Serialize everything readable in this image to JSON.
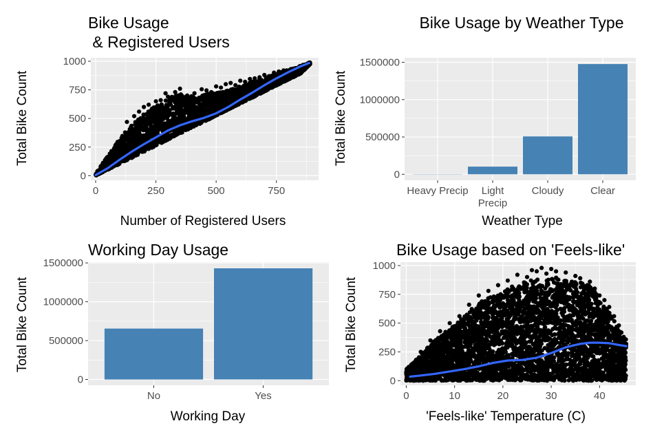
{
  "chart_data": [
    {
      "type": "scatter",
      "title_lines": [
        "Bike Usage",
        "  & Registered Users"
      ],
      "xlabel": "Number of Registered Users",
      "ylabel": "Total Bike Count",
      "xlim": [
        -20,
        925
      ],
      "ylim": [
        -40,
        1030
      ],
      "x_ticks": [
        0,
        250,
        500,
        750
      ],
      "y_ticks": [
        0,
        250,
        500,
        750,
        1000
      ],
      "grid": true,
      "smooth_color": "#3366ff",
      "point_color": "#000000",
      "trend": [
        [
          0,
          5
        ],
        [
          50,
          65
        ],
        [
          100,
          140
        ],
        [
          150,
          210
        ],
        [
          200,
          275
        ],
        [
          250,
          335
        ],
        [
          300,
          395
        ],
        [
          350,
          440
        ],
        [
          400,
          475
        ],
        [
          450,
          505
        ],
        [
          500,
          545
        ],
        [
          550,
          600
        ],
        [
          600,
          665
        ],
        [
          650,
          725
        ],
        [
          700,
          790
        ],
        [
          750,
          850
        ],
        [
          800,
          905
        ],
        [
          850,
          955
        ],
        [
          886,
          985
        ]
      ],
      "band_upper": [
        [
          0,
          20
        ],
        [
          30,
          110
        ],
        [
          60,
          200
        ],
        [
          100,
          330
        ],
        [
          150,
          440
        ],
        [
          200,
          540
        ],
        [
          250,
          610
        ],
        [
          300,
          680
        ],
        [
          340,
          720
        ],
        [
          370,
          700
        ],
        [
          420,
          690
        ],
        [
          480,
          720
        ],
        [
          550,
          745
        ],
        [
          600,
          780
        ],
        [
          650,
          820
        ],
        [
          700,
          850
        ],
        [
          750,
          890
        ],
        [
          800,
          925
        ],
        [
          850,
          960
        ],
        [
          890,
          990
        ]
      ],
      "band_lower": [
        [
          0,
          0
        ],
        [
          50,
          52
        ],
        [
          100,
          104
        ],
        [
          150,
          156
        ],
        [
          200,
          210
        ],
        [
          250,
          262
        ],
        [
          300,
          315
        ],
        [
          350,
          368
        ],
        [
          400,
          420
        ],
        [
          450,
          472
        ],
        [
          500,
          525
        ],
        [
          550,
          578
        ],
        [
          600,
          630
        ],
        [
          650,
          682
        ],
        [
          700,
          735
        ],
        [
          750,
          788
        ],
        [
          800,
          840
        ],
        [
          850,
          892
        ],
        [
          890,
          975
        ]
      ],
      "outliers": [
        [
          300,
          690
        ],
        [
          330,
          730
        ],
        [
          350,
          760
        ],
        [
          290,
          720
        ],
        [
          380,
          700
        ],
        [
          410,
          720
        ],
        [
          440,
          755
        ],
        [
          460,
          745
        ],
        [
          480,
          730
        ],
        [
          500,
          780
        ],
        [
          520,
          770
        ],
        [
          540,
          800
        ],
        [
          560,
          810
        ],
        [
          580,
          790
        ],
        [
          600,
          830
        ],
        [
          620,
          820
        ],
        [
          640,
          845
        ],
        [
          660,
          850
        ],
        [
          680,
          860
        ],
        [
          700,
          880
        ],
        [
          720,
          870
        ],
        [
          740,
          900
        ],
        [
          760,
          910
        ],
        [
          780,
          920
        ],
        [
          820,
          935
        ],
        [
          860,
          965
        ],
        [
          880,
          980
        ],
        [
          886,
          988
        ],
        [
          200,
          600
        ],
        [
          220,
          620
        ],
        [
          180,
          560
        ],
        [
          160,
          520
        ],
        [
          130,
          470
        ],
        [
          250,
          650
        ],
        [
          270,
          660
        ]
      ]
    },
    {
      "type": "bar",
      "title": "Bike Usage by Weather Type",
      "xlabel": "Weather Type",
      "ylabel": "Total Bike Count",
      "categories": [
        [
          "Heavy Precip"
        ],
        [
          "Light",
          "Precip"
        ],
        [
          "Cloudy"
        ],
        [
          "Clear"
        ]
      ],
      "values": [
        223,
        102000,
        507000,
        1476000
      ],
      "ylim": [
        -80000,
        1560000
      ],
      "y_ticks": [
        0,
        500000,
        1000000,
        1500000
      ],
      "bar_color": "#4682b4",
      "grid": true
    },
    {
      "type": "bar",
      "title": "Working Day Usage",
      "xlabel": "Working Day",
      "ylabel": "Total Bike Count",
      "categories": [
        [
          "No"
        ],
        [
          "Yes"
        ]
      ],
      "values": [
        655000,
        1430000
      ],
      "ylim": [
        -75000,
        1510000
      ],
      "y_ticks": [
        0,
        500000,
        1000000,
        1500000
      ],
      "bar_color": "#4682b4",
      "grid": true
    },
    {
      "type": "scatter",
      "title": "Bike Usage based on 'Feels-like'",
      "xlabel": "'Feels-like' Temperature (C)",
      "ylabel": "Total Bike Count",
      "xlim": [
        -1.2,
        47.5
      ],
      "ylim": [
        -40,
        1030
      ],
      "x_ticks": [
        0,
        10,
        20,
        30,
        40
      ],
      "y_ticks": [
        0,
        250,
        500,
        750,
        1000
      ],
      "grid": true,
      "smooth_color": "#3366ff",
      "point_color": "#000000",
      "trend": [
        [
          0.8,
          35
        ],
        [
          3,
          45
        ],
        [
          6,
          60
        ],
        [
          9,
          80
        ],
        [
          12,
          100
        ],
        [
          15,
          125
        ],
        [
          18,
          155
        ],
        [
          21,
          175
        ],
        [
          24,
          180
        ],
        [
          27,
          200
        ],
        [
          30,
          240
        ],
        [
          33,
          290
        ],
        [
          36,
          320
        ],
        [
          38,
          330
        ],
        [
          40,
          330
        ],
        [
          42,
          325
        ],
        [
          44,
          310
        ],
        [
          45.5,
          300
        ]
      ],
      "band_upper": [
        [
          0,
          100
        ],
        [
          3,
          220
        ],
        [
          5,
          320
        ],
        [
          8,
          420
        ],
        [
          10,
          480
        ],
        [
          12,
          560
        ],
        [
          14,
          640
        ],
        [
          16,
          700
        ],
        [
          18,
          740
        ],
        [
          20,
          780
        ],
        [
          22,
          820
        ],
        [
          24,
          850
        ],
        [
          26,
          880
        ],
        [
          28,
          880
        ],
        [
          30,
          900
        ],
        [
          32,
          890
        ],
        [
          34,
          870
        ],
        [
          36,
          860
        ],
        [
          38,
          830
        ],
        [
          40,
          720
        ],
        [
          42,
          600
        ],
        [
          44,
          450
        ],
        [
          45.5,
          360
        ]
      ],
      "band_lower": [
        [
          0,
          0
        ],
        [
          45.5,
          0
        ]
      ],
      "outliers": [
        [
          21,
          870
        ],
        [
          23,
          920
        ],
        [
          25,
          900
        ],
        [
          27,
          950
        ],
        [
          29,
          930
        ],
        [
          30,
          970
        ],
        [
          31,
          950
        ],
        [
          33,
          940
        ],
        [
          35,
          910
        ],
        [
          36,
          890
        ],
        [
          38,
          860
        ],
        [
          39,
          800
        ],
        [
          40,
          740
        ],
        [
          41,
          700
        ],
        [
          42,
          640
        ],
        [
          43,
          560
        ],
        [
          44,
          480
        ],
        [
          45,
          380
        ],
        [
          45.5,
          320
        ],
        [
          19,
          830
        ],
        [
          17,
          780
        ],
        [
          15,
          740
        ],
        [
          13,
          660
        ],
        [
          11,
          560
        ],
        [
          9,
          500
        ],
        [
          7,
          430
        ],
        [
          5,
          350
        ],
        [
          3,
          250
        ],
        [
          1,
          130
        ],
        [
          26,
          960
        ],
        [
          28,
          980
        ]
      ]
    }
  ]
}
